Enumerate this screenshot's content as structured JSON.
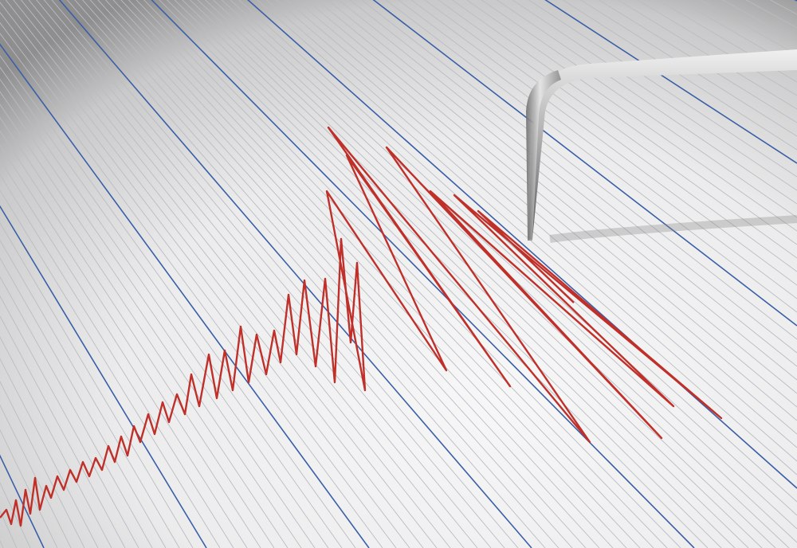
{
  "scene": {
    "subject": "seismograph",
    "colors": {
      "paper": "#f2f2f2",
      "paper_shadow": "#9a9a9a",
      "grid_major": "#3a5fa8",
      "grid_minor": "#b9bcc4",
      "trace": "#c0302a",
      "needle": "#a8a8a8"
    }
  }
}
